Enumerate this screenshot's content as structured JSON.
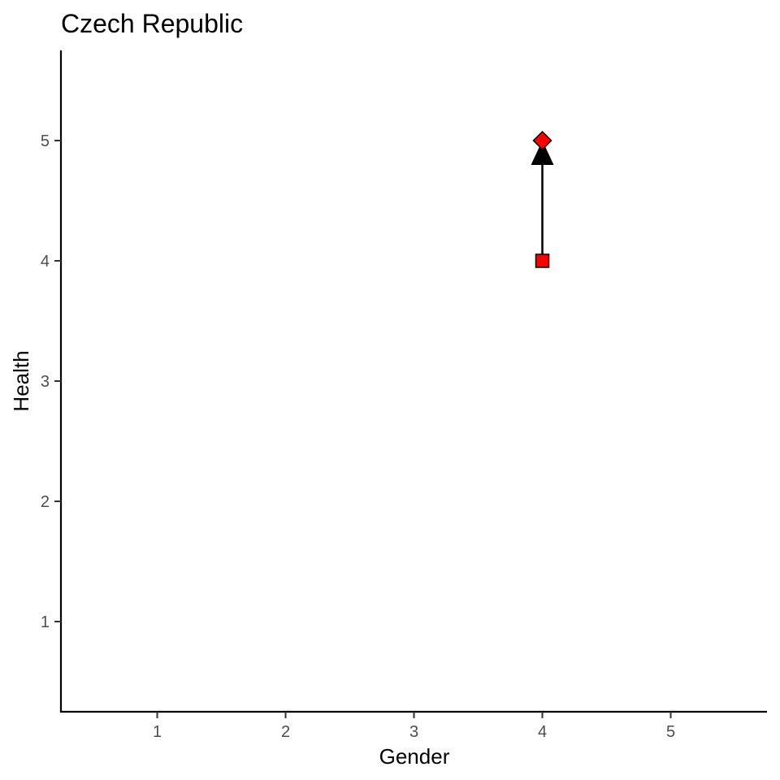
{
  "chart_data": {
    "type": "scatter",
    "title": "Czech Republic",
    "xlabel": "Gender",
    "ylabel": "Health",
    "xlim": [
      0.25,
      5.75
    ],
    "ylim": [
      0.25,
      5.75
    ],
    "xticks": [
      1,
      2,
      3,
      4,
      5
    ],
    "yticks": [
      1,
      2,
      3,
      4,
      5
    ],
    "grid": false,
    "points": [
      {
        "x": 4,
        "y": 4,
        "shape": "square",
        "fill": "#ff0000"
      },
      {
        "x": 4,
        "y": 5,
        "shape": "diamond",
        "fill": "#ff0000"
      }
    ],
    "arrow": {
      "x_start": 4,
      "y_start": 4,
      "x_end": 4,
      "y_end": 5,
      "color": "#000000"
    }
  }
}
